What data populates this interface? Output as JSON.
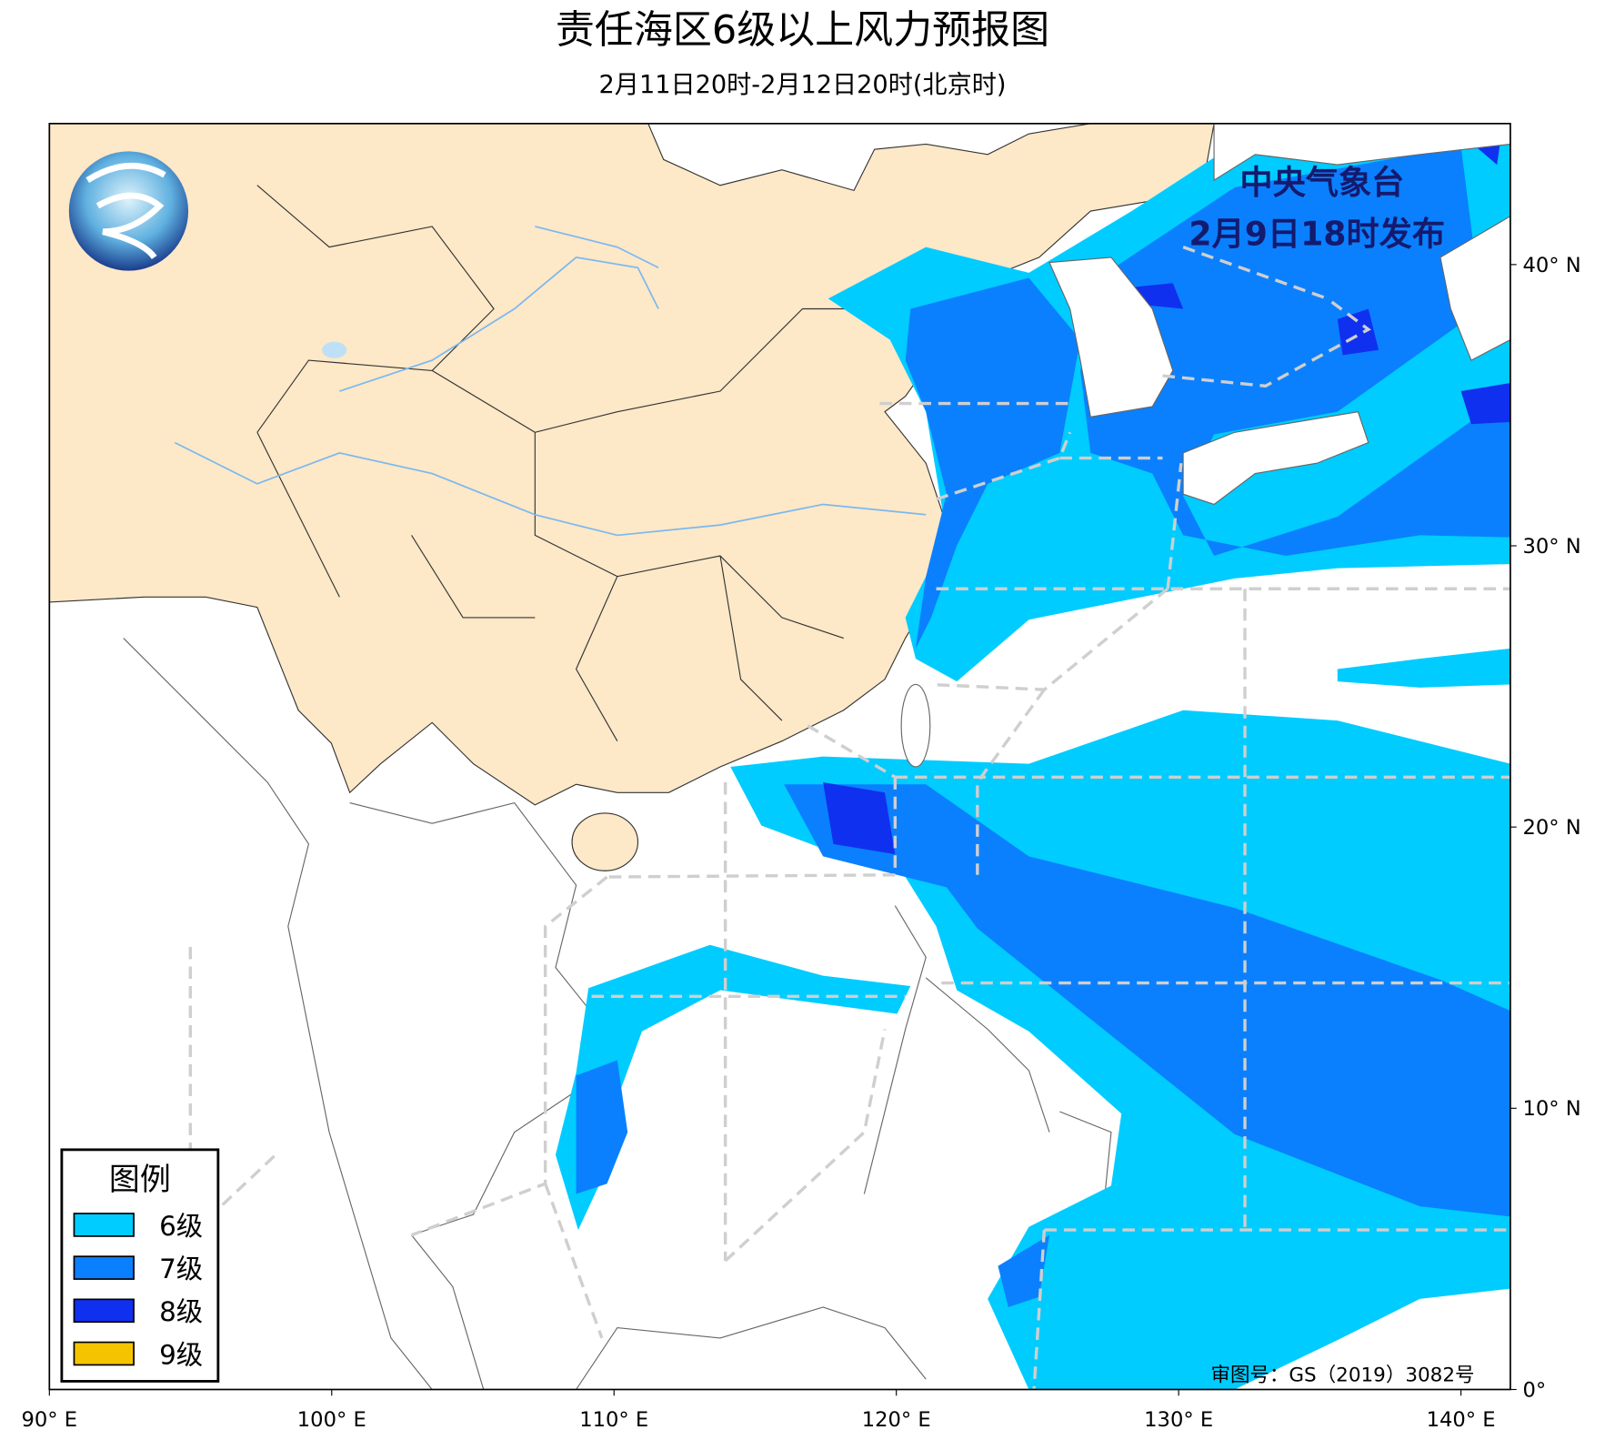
{
  "header": {
    "title": "责任海区6级以上风力预报图",
    "subtitle": "2月11日20时-2月12日20时(北京时)"
  },
  "issuer": {
    "line1": "中央气象台",
    "line2": "2月9日18时发布"
  },
  "legend": {
    "title": "图例",
    "items": [
      {
        "label": "6级",
        "color": "#00ccff"
      },
      {
        "label": "7级",
        "color": "#0a80ff"
      },
      {
        "label": "8级",
        "color": "#1030f0"
      },
      {
        "label": "9级",
        "color": "#f5c400"
      }
    ]
  },
  "axes": {
    "x_labels": [
      "90° E",
      "100° E",
      "110° E",
      "120° E",
      "130° E",
      "140° E"
    ],
    "y_labels": [
      "0°",
      "10° N",
      "20° N",
      "30° N",
      "40° N"
    ]
  },
  "footer": "审图号：GS（2019）3082号"
}
